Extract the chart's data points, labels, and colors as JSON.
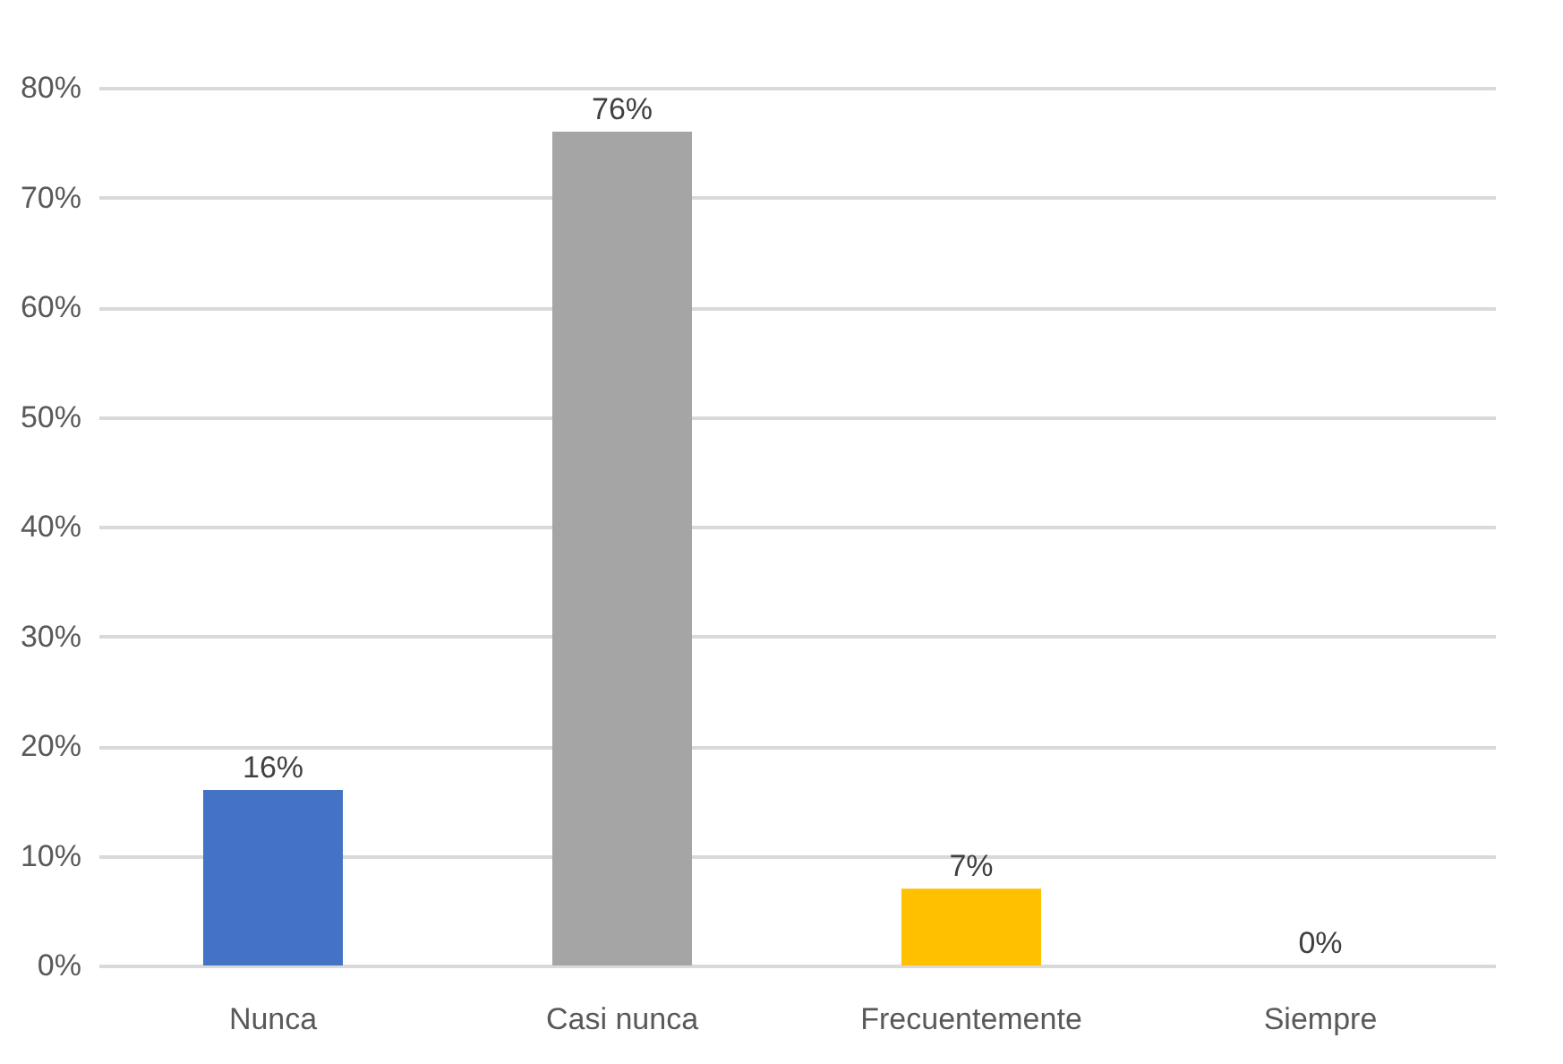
{
  "chart_data": {
    "type": "bar",
    "categories": [
      "Nunca",
      "Casi nunca",
      "Frecuentemente",
      "Siempre"
    ],
    "values": [
      16,
      76,
      7,
      0
    ],
    "colors": [
      "#4472c4",
      "#a5a5a5",
      "#ffc000",
      "#2f5597"
    ],
    "value_labels": [
      "16%",
      "76%",
      "7%",
      "0%"
    ],
    "ylim": [
      0,
      80
    ],
    "yticks": [
      {
        "value": 0,
        "label": "0%"
      },
      {
        "value": 10,
        "label": "10%"
      },
      {
        "value": 20,
        "label": "20%"
      },
      {
        "value": 30,
        "label": "30%"
      },
      {
        "value": 40,
        "label": "40%"
      },
      {
        "value": 50,
        "label": "50%"
      },
      {
        "value": 60,
        "label": "60%"
      },
      {
        "value": 70,
        "label": "70%"
      },
      {
        "value": 80,
        "label": "80%"
      }
    ],
    "grid": true
  }
}
